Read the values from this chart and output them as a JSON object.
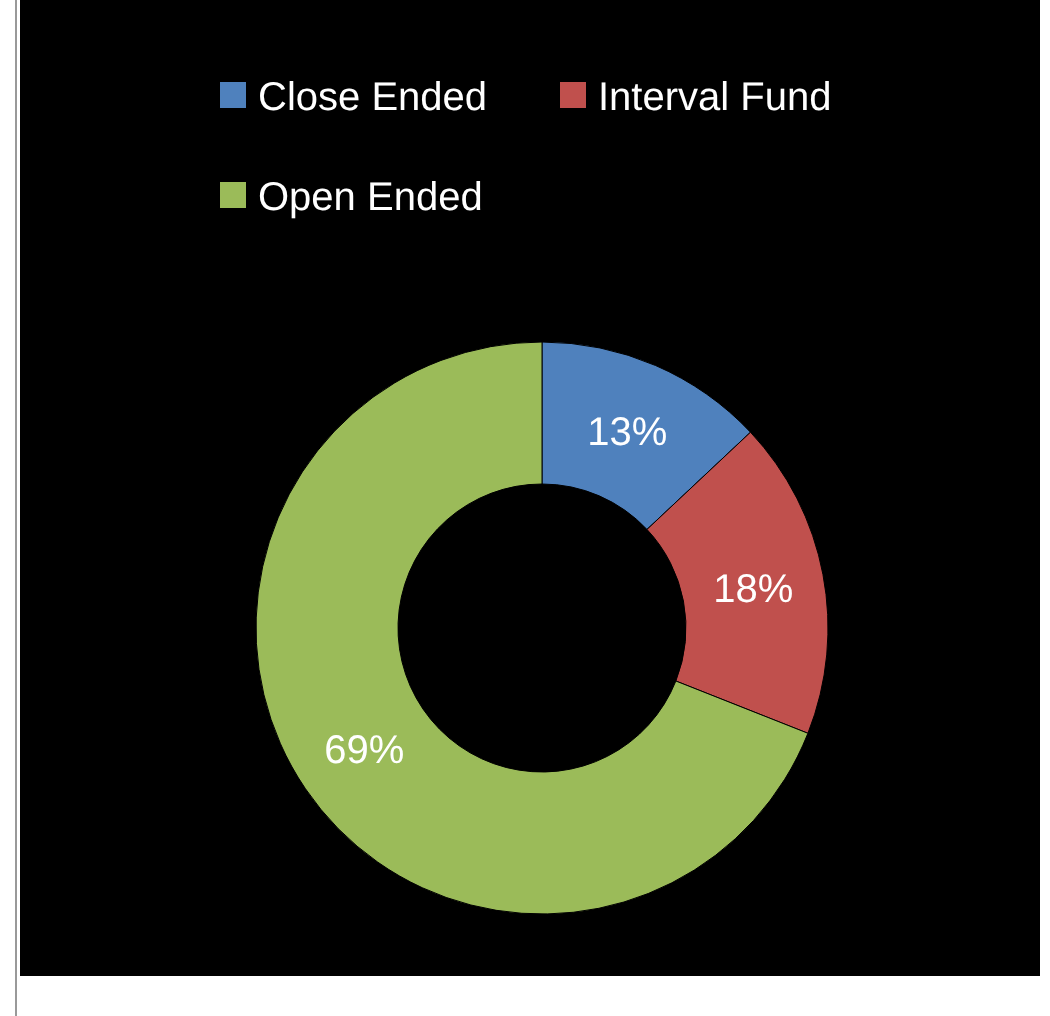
{
  "chart_data": {
    "type": "donut",
    "categories": [
      "Close Ended",
      "Interval Fund",
      "Open Ended"
    ],
    "values": [
      13,
      18,
      69
    ],
    "colors": [
      "#4f81bd",
      "#c0504d",
      "#9bbb59"
    ],
    "value_labels": [
      "13%",
      "18%",
      "69%"
    ],
    "legend": "top"
  }
}
